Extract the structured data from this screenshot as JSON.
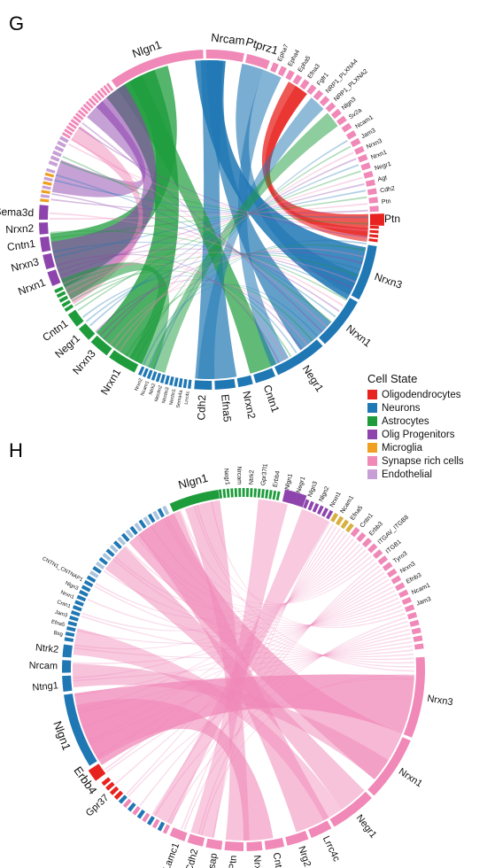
{
  "panels": [
    {
      "letter": "G",
      "big_labels": [
        "Nlgn1",
        "Nrcam",
        "Ptprz1",
        "Nrxn3",
        "Nrxn1",
        "Negr1",
        "Cntn1",
        "Nrxn2",
        "Efna5",
        "Cdh2",
        "Nrxn1",
        "Nrxn3",
        "Cntn1",
        "Negr1",
        "Nrxn1",
        "Nrxn3",
        "Cntn1",
        "Nrxn2",
        "Sema3d",
        "Ptn"
      ],
      "medium_labels": [
        "Epha7",
        "Epha4",
        "Epha5",
        "Efna3",
        "Fgfr1",
        "NRP1_PLXNA4",
        "NRP1_PLXNA2",
        "Nlgn3",
        "Sv2a",
        "Ncam1",
        "Jam3",
        "Nrxn3",
        "Nrxn1",
        "Negr1",
        "Agt",
        "Cdh2",
        "Ptn"
      ],
      "outgoing_labels": [
        "Lrrc4c",
        "Sema4a",
        "Nectin1",
        "Nectin3",
        "Nectin2",
        "Ntrk2",
        "Ncam1",
        "Nrxn2"
      ]
    },
    {
      "letter": "H",
      "big_labels": [
        "Nlgn1",
        "Nrxn3",
        "Nrxn1",
        "Negr1",
        "Nlgn1",
        "Ntng1",
        "Nrcam",
        "Ntrk2",
        "Lrrc4c",
        "Nrg2",
        "Cntn1",
        "Nrxn2",
        "Ptn",
        "Psap",
        "Cdh2",
        "Lamc1",
        "Gpr37",
        "Erbb4"
      ],
      "medium_labels": [
        "Negr1",
        "Nrcam",
        "Ntrk2",
        "Gpr37l1",
        "Erbb4",
        "Nlgn1",
        "Negr1",
        "Nlgn3",
        "Nlgn2",
        "Nrxn1",
        "Ncam1",
        "Efna5",
        "Cntn1",
        "Erbb3",
        "ITGAV_ITGB8",
        "ITGB1",
        "Tyro3",
        "Nrxn3",
        "Efnb3",
        "Ncam1",
        "Jam3"
      ],
      "outgoing_labels": [
        "Bsg",
        "Efna5",
        "Jam3",
        "Cntn1",
        "Nrxn1",
        "Nlgn3",
        "CNTN1_CNTNAP1"
      ]
    }
  ],
  "legend": {
    "title": "Cell State",
    "items": [
      {
        "label": "Oligodendrocytes",
        "color": "#e8221e"
      },
      {
        "label": "Neurons",
        "color": "#1f77b4"
      },
      {
        "label": "Astrocytes",
        "color": "#1e9c3c"
      },
      {
        "label": "Olig Progenitors",
        "color": "#8e44ad"
      },
      {
        "label": "Microglia",
        "color": "#f0a020"
      },
      {
        "label": "Synapse rich cells",
        "color": "#f088b8"
      },
      {
        "label": "Endothelial",
        "color": "#c79fd6"
      }
    ]
  }
}
